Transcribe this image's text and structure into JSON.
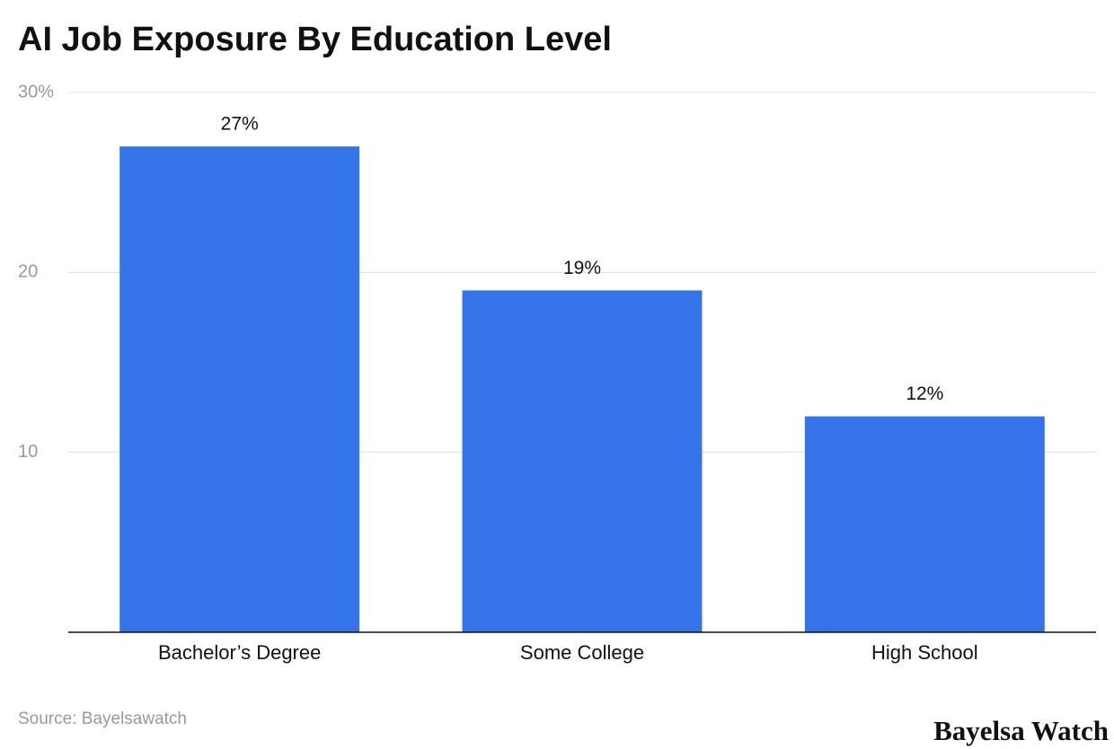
{
  "chart_data": {
    "type": "bar",
    "title": "AI Job Exposure By Education Level",
    "categories": [
      "Bachelor’s Degree",
      "Some College",
      "High School"
    ],
    "values": [
      27,
      19,
      12
    ],
    "value_labels": [
      "27%",
      "19%",
      "12%"
    ],
    "color": "#3474e8",
    "ylim": [
      0,
      30
    ],
    "yticks": [
      10,
      20,
      {
        "value": 30,
        "label": "30%"
      }
    ],
    "grid": true,
    "source": "Source: Bayelsawatch",
    "watermark": "Bayelsa Watch"
  }
}
